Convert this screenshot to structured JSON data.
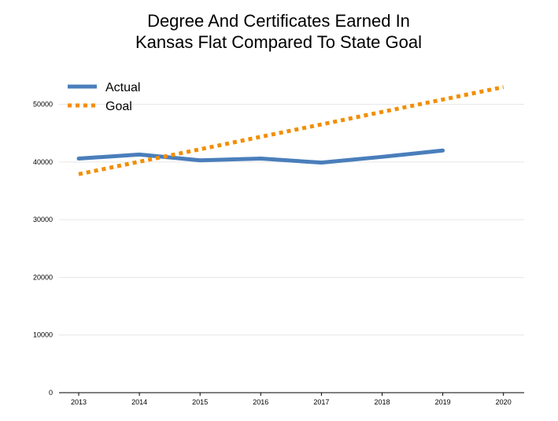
{
  "chart_data": {
    "type": "line",
    "title_lines": [
      "Degree And Certificates Earned In",
      "Kansas Flat Compared To State Goal"
    ],
    "xlabel": "",
    "ylabel": "",
    "x": [
      2013,
      2014,
      2015,
      2016,
      2017,
      2018,
      2019,
      2020
    ],
    "ylim": [
      0,
      55000
    ],
    "yticks": [
      0,
      10000,
      20000,
      30000,
      40000,
      50000
    ],
    "grid": true,
    "legend_position": "top-left",
    "series": [
      {
        "name": "Actual",
        "style": "solid",
        "color": "#4a7ebb",
        "points": [
          [
            2013,
            40600
          ],
          [
            2014,
            41300
          ],
          [
            2015,
            40300
          ],
          [
            2016,
            40600
          ],
          [
            2017,
            39900
          ],
          [
            2018,
            40900
          ],
          [
            2019,
            42000
          ]
        ]
      },
      {
        "name": "Goal",
        "style": "dotted",
        "color": "#f28e00",
        "points": [
          [
            2013,
            37900
          ],
          [
            2020,
            53000
          ]
        ]
      }
    ]
  }
}
